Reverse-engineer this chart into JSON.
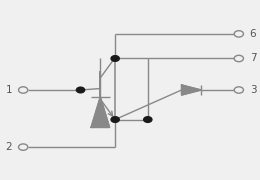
{
  "bg_color": "#f0f0f0",
  "line_color": "#888888",
  "dot_color": "#1a1a1a",
  "text_color": "#555555",
  "figsize": [
    2.6,
    1.8
  ],
  "dpi": 100,
  "lw": 1.0,
  "open_circle_r": 0.018,
  "dot_r": 0.016,
  "label_fontsize": 7.5
}
